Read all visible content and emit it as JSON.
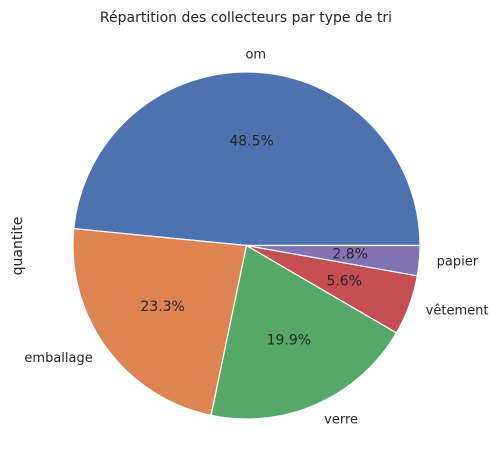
{
  "chart_data": {
    "type": "pie",
    "title": "Répartition des collecteurs par type de tri",
    "ylabel": "quantite",
    "categories": [
      "om",
      "emballage",
      "verre",
      "vêtement",
      "papier"
    ],
    "values": [
      48.5,
      23.3,
      19.9,
      5.6,
      2.8
    ],
    "percent_labels": [
      "48.5%",
      "23.3%",
      "19.9%",
      "5.6%",
      "2.8%"
    ],
    "colors": [
      "#4c72b0",
      "#dd8452",
      "#55a868",
      "#c44e52",
      "#8172b3"
    ],
    "start_angle_deg": 0,
    "direction": "counterclockwise",
    "legend": "none"
  }
}
